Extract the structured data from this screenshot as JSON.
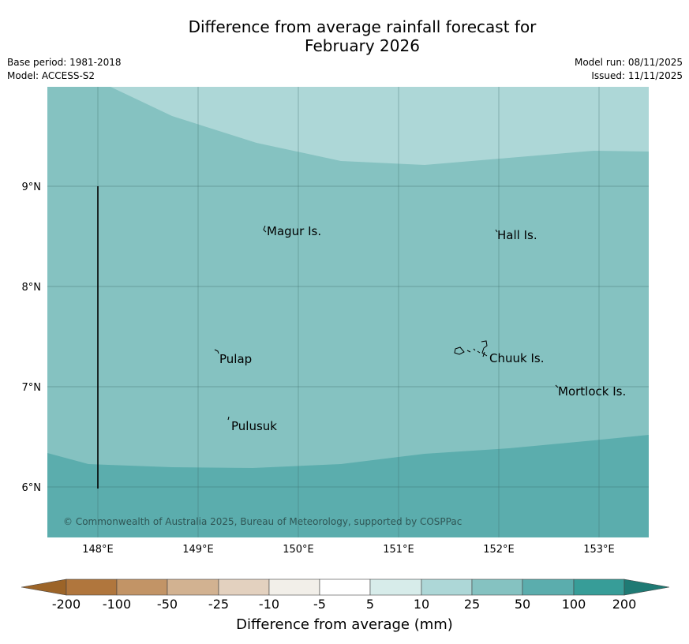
{
  "title_line1": "Difference from average rainfall forecast for",
  "title_line2": "February 2026",
  "meta": {
    "base_period": "Base period: 1981-2018",
    "model": "Model: ACCESS-S2",
    "model_run": "Model run: 08/11/2025",
    "issued": "Issued: 11/11/2025"
  },
  "map": {
    "lon_ticks": [
      "148°E",
      "149°E",
      "150°E",
      "151°E",
      "152°E",
      "153°E"
    ],
    "lat_ticks": [
      "9°N",
      "8°N",
      "7°N",
      "6°N"
    ],
    "places": [
      "Magur Is.",
      "Hall Is.",
      "Pulap",
      "Chuuk Is.",
      "Mortlock Is.",
      "Pulusuk"
    ],
    "copyright": "© Commonwealth of Australia 2025, Bureau of Meteorology, supported by COSPPac"
  },
  "colorbar": {
    "labels": [
      "-200",
      "-100",
      "-50",
      "-25",
      "-10",
      "-5",
      "5",
      "10",
      "25",
      "50",
      "100",
      "200"
    ],
    "title": "Difference from average (mm)",
    "colors": {
      "extend_low": "#9c6428",
      "c1": "#b0763d",
      "c2": "#c29466",
      "c3": "#d2b291",
      "c4": "#e3d1bf",
      "c5": "#f2efe9",
      "c6": "#ffffff",
      "c7": "#d7ecea",
      "c8": "#add7d7",
      "c9": "#85c2c1",
      "c10": "#5badad",
      "c11": "#379d98",
      "extend_high": "#1f7a74"
    }
  }
}
